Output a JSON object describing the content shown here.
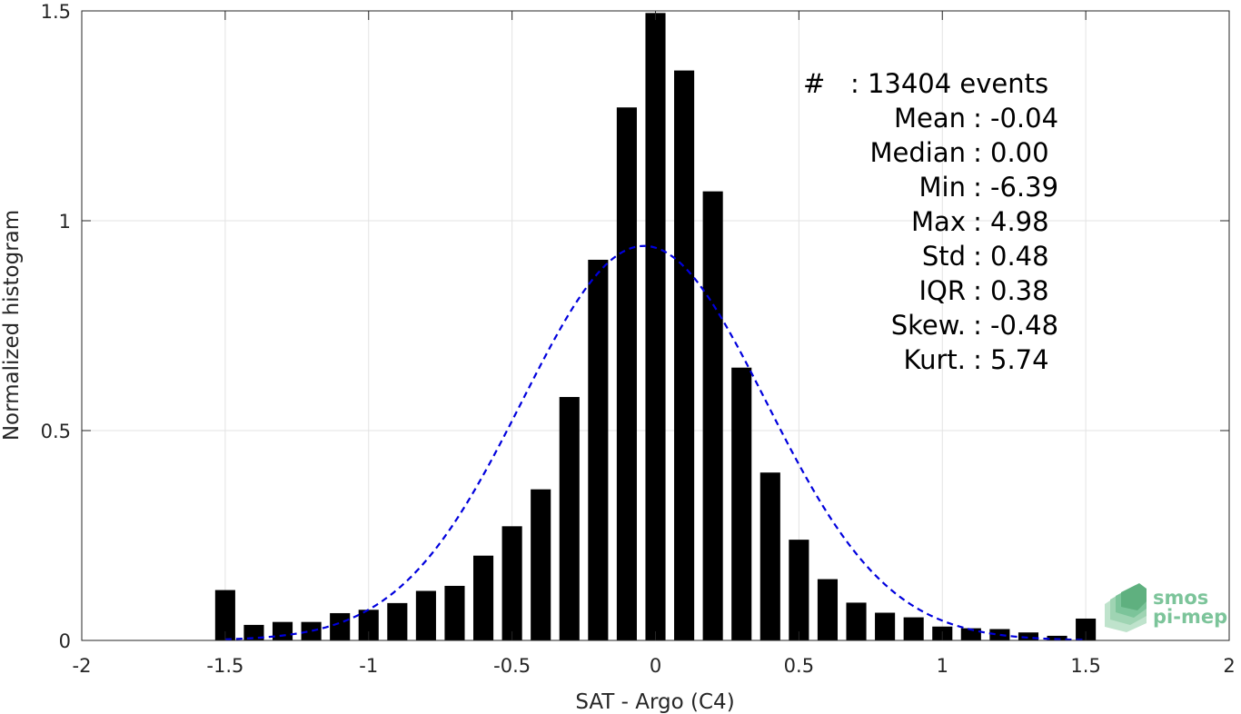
{
  "chart_data": {
    "type": "bar",
    "title": "",
    "xlabel": "SAT - Argo (C4)",
    "ylabel": "Normalized histogram",
    "xlim": [
      -2,
      2
    ],
    "ylim": [
      0,
      1.5
    ],
    "xticks": [
      "-2",
      "-1.5",
      "-1",
      "-0.5",
      "0",
      "0.5",
      "1",
      "1.5",
      "2"
    ],
    "yticks": [
      "0",
      "0.5",
      "1",
      "1.5"
    ],
    "grid": true,
    "bar_color": "#000000",
    "bar_width": 0.07,
    "bins": [
      -1.5,
      -1.4,
      -1.3,
      -1.2,
      -1.1,
      -1.0,
      -0.9,
      -0.8,
      -0.7,
      -0.6,
      -0.5,
      -0.4,
      -0.3,
      -0.2,
      -0.1,
      0.0,
      0.1,
      0.2,
      0.3,
      0.4,
      0.5,
      0.6,
      0.7,
      0.8,
      0.9,
      1.0,
      1.1,
      1.2,
      1.3,
      1.4,
      1.5
    ],
    "values": [
      0.12,
      0.037,
      0.044,
      0.044,
      0.065,
      0.073,
      0.089,
      0.118,
      0.13,
      0.202,
      0.272,
      0.36,
      0.58,
      0.907,
      1.27,
      1.495,
      1.358,
      1.07,
      0.65,
      0.4,
      0.24,
      0.146,
      0.09,
      0.066,
      0.055,
      0.033,
      0.029,
      0.027,
      0.019,
      0.011,
      0.052
    ],
    "fit": {
      "type": "normal",
      "mean": -0.04,
      "std": 0.425,
      "peak": 0.94,
      "color": "#0000dd",
      "style": "dashed",
      "x_range": [
        -1.5,
        1.5
      ]
    },
    "annotation": {
      "events_line": "#   : 13404 events",
      "stats": [
        {
          "label": "Mean",
          "value": "-0.04"
        },
        {
          "label": "Median",
          "value": "0.00"
        },
        {
          "label": "Min",
          "value": "-6.39"
        },
        {
          "label": "Max",
          "value": "4.98"
        },
        {
          "label": "Std",
          "value": "0.48"
        },
        {
          "label": "IQR",
          "value": "0.38"
        },
        {
          "label": "Skew.",
          "value": "-0.48"
        },
        {
          "label": "Kurt.",
          "value": "5.74"
        }
      ]
    }
  },
  "logo": {
    "line1": "smos",
    "line2": "pi-mep"
  }
}
